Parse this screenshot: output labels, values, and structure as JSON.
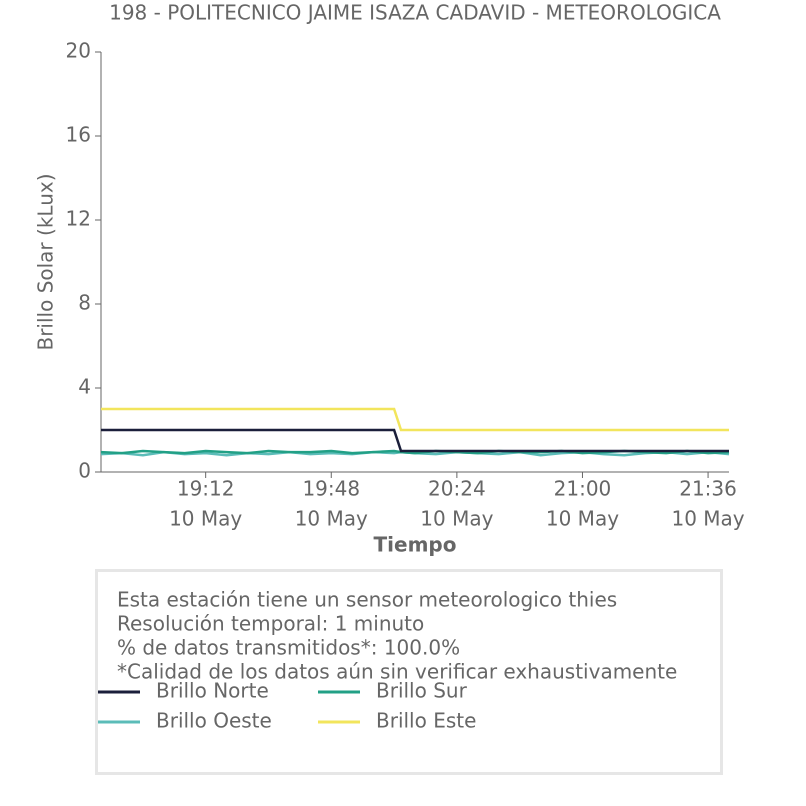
{
  "chart_data": {
    "type": "line",
    "title": "198 - POLITECNICO JAIME ISAZA CADAVID - METEOROLOGICA",
    "x_label": "Tiempo",
    "y_label": "Brillo Solar (kLux)",
    "x": [
      "10 May 18:42",
      "10 May 18:48",
      "10 May 18:54",
      "10 May 19:00",
      "10 May 19:06",
      "10 May 19:12",
      "10 May 19:18",
      "10 May 19:24",
      "10 May 19:30",
      "10 May 19:36",
      "10 May 19:42",
      "10 May 19:48",
      "10 May 19:54",
      "10 May 20:00",
      "10 May 20:06",
      "10 May 20:08",
      "10 May 20:12",
      "10 May 20:18",
      "10 May 20:24",
      "10 May 20:30",
      "10 May 20:36",
      "10 May 20:42",
      "10 May 20:48",
      "10 May 20:54",
      "10 May 21:00",
      "10 May 21:06",
      "10 May 21:12",
      "10 May 21:18",
      "10 May 21:24",
      "10 May 21:30",
      "10 May 21:36",
      "10 May 21:42"
    ],
    "series": [
      {
        "name": "Brillo Norte",
        "color": "#1b1f3b",
        "values": [
          2,
          2,
          2,
          2,
          2,
          2,
          2,
          2,
          2,
          2,
          2,
          2,
          2,
          2,
          2,
          1,
          1,
          1,
          1,
          1,
          1,
          1,
          1,
          1,
          1,
          1,
          1,
          1,
          1,
          1,
          1,
          1
        ]
      },
      {
        "name": "Brillo Sur",
        "color": "#22a086",
        "values": [
          0.95,
          0.9,
          1.0,
          0.95,
          0.9,
          1.0,
          0.95,
          0.9,
          1.0,
          0.95,
          0.95,
          1.0,
          0.9,
          0.95,
          1.0,
          0.95,
          0.9,
          1.0,
          0.95,
          0.9,
          1.0,
          0.95,
          0.95,
          1.0,
          0.9,
          0.95,
          1.0,
          0.95,
          0.9,
          1.0,
          0.9,
          0.95
        ]
      },
      {
        "name": "Brillo Oeste",
        "color": "#5bbcb8",
        "values": [
          0.85,
          0.9,
          0.8,
          0.95,
          0.85,
          0.9,
          0.8,
          0.9,
          0.85,
          0.95,
          0.85,
          0.9,
          0.85,
          0.95,
          0.9,
          0.95,
          0.9,
          0.85,
          0.95,
          0.9,
          0.85,
          0.95,
          0.8,
          0.9,
          0.95,
          0.85,
          0.8,
          0.9,
          0.95,
          0.85,
          0.95,
          0.85
        ]
      },
      {
        "name": "Brillo Este",
        "color": "#f2e55c",
        "values": [
          3,
          3,
          3,
          3,
          3,
          3,
          3,
          3,
          3,
          3,
          3,
          3,
          3,
          3,
          3,
          2,
          2,
          2,
          2,
          2,
          2,
          2,
          2,
          2,
          2,
          2,
          2,
          2,
          2,
          2,
          2,
          2
        ]
      }
    ],
    "xlim": [
      "10 May 18:42",
      "10 May 21:42"
    ],
    "xticks": [
      {
        "value": "10 May 19:12",
        "label": "19:12",
        "sublabel": "10 May"
      },
      {
        "value": "10 May 19:48",
        "label": "19:48",
        "sublabel": "10 May"
      },
      {
        "value": "10 May 20:24",
        "label": "20:24",
        "sublabel": "10 May"
      },
      {
        "value": "10 May 21:00",
        "label": "21:00",
        "sublabel": "10 May"
      },
      {
        "value": "10 May 21:36",
        "label": "21:36",
        "sublabel": "10 May"
      }
    ],
    "ylim": [
      0,
      20
    ],
    "yticks": [
      0,
      4,
      8,
      12,
      16,
      20
    ],
    "notes": [
      "Esta estación tiene un sensor meteorologico thies",
      "Resolución temporal: 1 minuto",
      "% de datos transmitidos*: 100.0%",
      "*Calidad de los datos aún sin verificar exhaustivamente"
    ]
  }
}
